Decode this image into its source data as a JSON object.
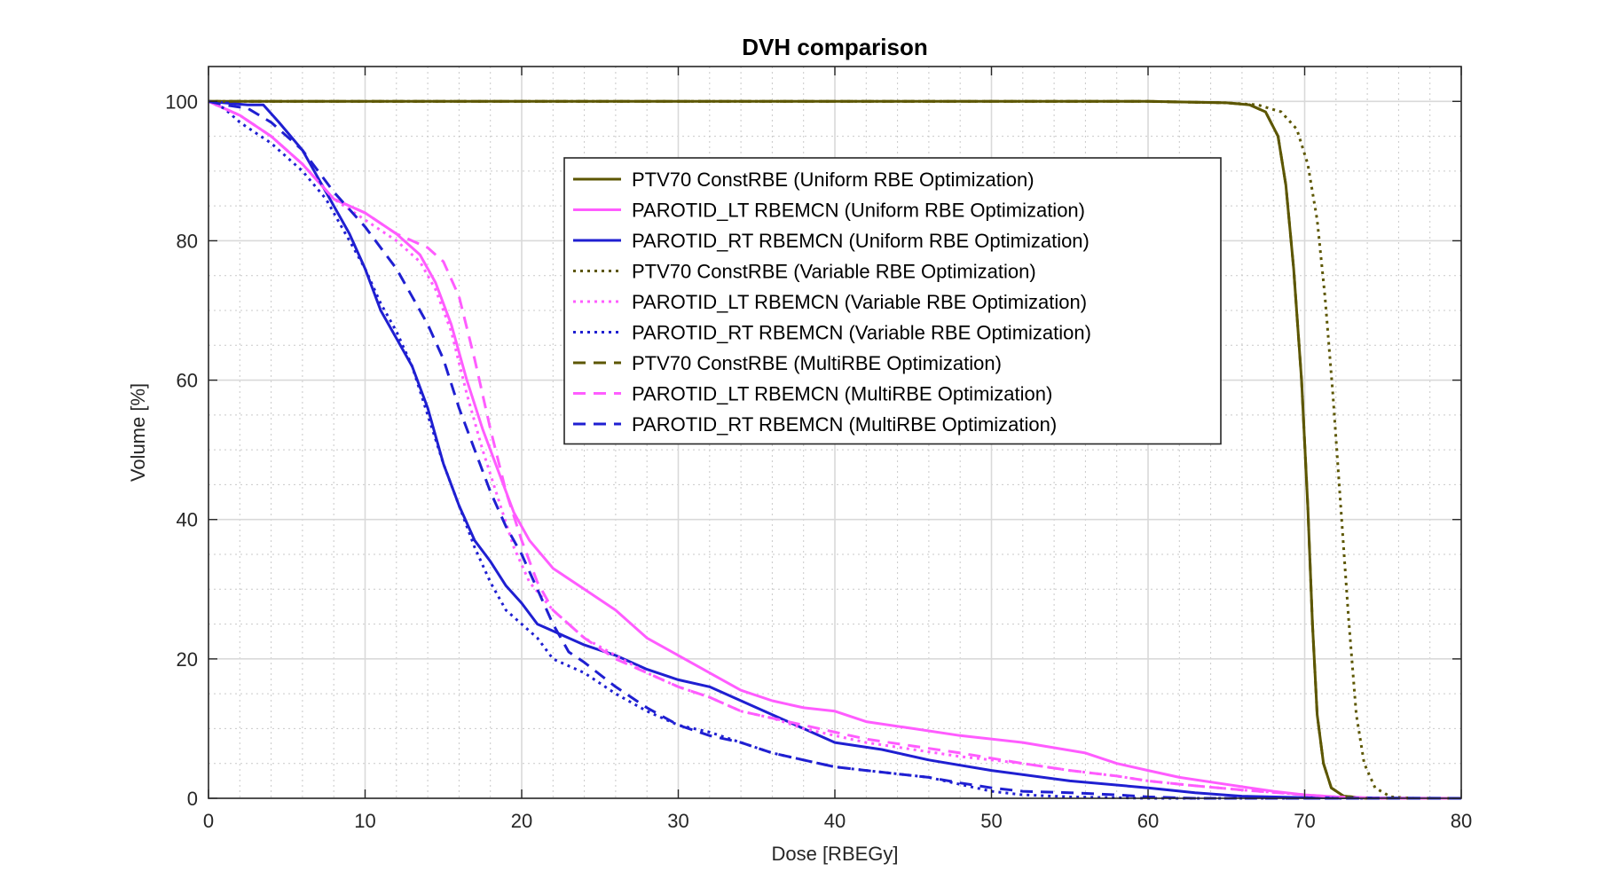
{
  "chart_data": {
    "type": "line",
    "title": "DVH comparison",
    "xlabel": "Dose [RBEGy]",
    "ylabel": "Volume [%]",
    "xlim": [
      0,
      80
    ],
    "ylim": [
      0,
      105
    ],
    "xticks": [
      0,
      10,
      20,
      30,
      40,
      50,
      60,
      70,
      80
    ],
    "yticks": [
      0,
      20,
      40,
      60,
      80,
      100
    ],
    "grid": true,
    "minor_grid": true,
    "legend_position": "top-center",
    "series": [
      {
        "name": "PTV70 ConstRBE (Uniform RBE Optimization)",
        "color": "#5c5600",
        "dash": "solid",
        "width": 3,
        "points": [
          [
            0,
            100
          ],
          [
            50,
            100
          ],
          [
            60,
            100
          ],
          [
            65,
            99.8
          ],
          [
            66.5,
            99.5
          ],
          [
            67.5,
            98.5
          ],
          [
            68.3,
            95
          ],
          [
            68.8,
            88
          ],
          [
            69.3,
            76
          ],
          [
            69.8,
            60
          ],
          [
            70.2,
            42
          ],
          [
            70.5,
            25
          ],
          [
            70.8,
            12
          ],
          [
            71.2,
            5
          ],
          [
            71.7,
            1.5
          ],
          [
            72.5,
            0.3
          ],
          [
            74,
            0
          ],
          [
            80,
            0
          ]
        ]
      },
      {
        "name": "PAROTID_LT RBEMCN (Uniform RBE Optimization)",
        "color": "#ff5cff",
        "dash": "solid",
        "width": 3,
        "points": [
          [
            0,
            100
          ],
          [
            2,
            98
          ],
          [
            4,
            95
          ],
          [
            6,
            91
          ],
          [
            8,
            86
          ],
          [
            10,
            84
          ],
          [
            12,
            81
          ],
          [
            13.5,
            78
          ],
          [
            14.5,
            74
          ],
          [
            15.5,
            68
          ],
          [
            16.5,
            60
          ],
          [
            17.5,
            53
          ],
          [
            18.5,
            47
          ],
          [
            19.5,
            41
          ],
          [
            20.5,
            37
          ],
          [
            22,
            33
          ],
          [
            24,
            30
          ],
          [
            26,
            27
          ],
          [
            28,
            23
          ],
          [
            30,
            20.5
          ],
          [
            32,
            18
          ],
          [
            34,
            15.5
          ],
          [
            36,
            14
          ],
          [
            38,
            13
          ],
          [
            40,
            12.5
          ],
          [
            42,
            11
          ],
          [
            45,
            10
          ],
          [
            48,
            9
          ],
          [
            52,
            8
          ],
          [
            56,
            6.5
          ],
          [
            58,
            5
          ],
          [
            60,
            4
          ],
          [
            62,
            3
          ],
          [
            65,
            2
          ],
          [
            68,
            1
          ],
          [
            70,
            0.5
          ],
          [
            72,
            0.2
          ],
          [
            75,
            0
          ],
          [
            80,
            0
          ]
        ]
      },
      {
        "name": "PAROTID_RT RBEMCN (Uniform RBE Optimization)",
        "color": "#1f1fd1",
        "dash": "solid",
        "width": 3,
        "points": [
          [
            0,
            100
          ],
          [
            2.5,
            99.5
          ],
          [
            3.5,
            99.5
          ],
          [
            4.5,
            97
          ],
          [
            6,
            93
          ],
          [
            7.5,
            87
          ],
          [
            9,
            81
          ],
          [
            10,
            76
          ],
          [
            11,
            70
          ],
          [
            12,
            66
          ],
          [
            13,
            62
          ],
          [
            14,
            56
          ],
          [
            15,
            48
          ],
          [
            16,
            42
          ],
          [
            17,
            37
          ],
          [
            18,
            34
          ],
          [
            19,
            30.5
          ],
          [
            20,
            28
          ],
          [
            21,
            25
          ],
          [
            22,
            24
          ],
          [
            24,
            22
          ],
          [
            26,
            20.5
          ],
          [
            28,
            18.5
          ],
          [
            30,
            17
          ],
          [
            32,
            16
          ],
          [
            34,
            14
          ],
          [
            36,
            12
          ],
          [
            38,
            10
          ],
          [
            40,
            8
          ],
          [
            43,
            7
          ],
          [
            46,
            5.5
          ],
          [
            50,
            4
          ],
          [
            55,
            2.5
          ],
          [
            60,
            1.5
          ],
          [
            63,
            0.8
          ],
          [
            66,
            0.3
          ],
          [
            70,
            0.1
          ],
          [
            80,
            0
          ]
        ]
      },
      {
        "name": "PTV70 ConstRBE (Variable RBE Optimization)",
        "color": "#5c5600",
        "dash": "dot",
        "width": 3,
        "points": [
          [
            0,
            100
          ],
          [
            50,
            100
          ],
          [
            60,
            100
          ],
          [
            65,
            99.8
          ],
          [
            67,
            99.5
          ],
          [
            68.5,
            98.5
          ],
          [
            69.5,
            96
          ],
          [
            70.2,
            91
          ],
          [
            70.8,
            83
          ],
          [
            71.3,
            72
          ],
          [
            71.8,
            58
          ],
          [
            72.3,
            42
          ],
          [
            72.8,
            26
          ],
          [
            73.3,
            12
          ],
          [
            73.8,
            5
          ],
          [
            74.5,
            1.5
          ],
          [
            75.5,
            0.2
          ],
          [
            77,
            0
          ],
          [
            80,
            0
          ]
        ]
      },
      {
        "name": "PAROTID_LT RBEMCN (Variable RBE Optimization)",
        "color": "#ff5cff",
        "dash": "dot",
        "width": 3,
        "points": [
          [
            0,
            100
          ],
          [
            2,
            98
          ],
          [
            4,
            95
          ],
          [
            6,
            91
          ],
          [
            8,
            86
          ],
          [
            10,
            83
          ],
          [
            12,
            80
          ],
          [
            13.5,
            77
          ],
          [
            14.5,
            73
          ],
          [
            15.5,
            67
          ],
          [
            16.5,
            58
          ],
          [
            17.5,
            50
          ],
          [
            18.5,
            43
          ],
          [
            19.5,
            36
          ],
          [
            20.5,
            31
          ],
          [
            22,
            27
          ],
          [
            24,
            23
          ],
          [
            26,
            20.5
          ],
          [
            28,
            18
          ],
          [
            30,
            16
          ],
          [
            32,
            14.5
          ],
          [
            34,
            12.5
          ],
          [
            36,
            11.5
          ],
          [
            38,
            10
          ],
          [
            40,
            9
          ],
          [
            42,
            8
          ],
          [
            45,
            7
          ],
          [
            48,
            6
          ],
          [
            52,
            5
          ],
          [
            55,
            4
          ],
          [
            58,
            3.2
          ],
          [
            60,
            2.5
          ],
          [
            63,
            1.8
          ],
          [
            66,
            1.2
          ],
          [
            70,
            0.5
          ],
          [
            72,
            0.2
          ],
          [
            75,
            0
          ],
          [
            80,
            0
          ]
        ]
      },
      {
        "name": "PAROTID_RT RBEMCN (Variable RBE Optimization)",
        "color": "#1f1fd1",
        "dash": "dot",
        "width": 3,
        "points": [
          [
            0,
            100
          ],
          [
            1,
            99
          ],
          [
            2,
            97
          ],
          [
            4,
            94
          ],
          [
            6,
            90
          ],
          [
            7.5,
            86
          ],
          [
            8.5,
            82
          ],
          [
            9,
            80
          ],
          [
            10,
            76
          ],
          [
            11,
            71
          ],
          [
            12,
            67
          ],
          [
            13,
            62
          ],
          [
            14,
            55
          ],
          [
            15,
            48
          ],
          [
            16,
            42
          ],
          [
            17,
            36
          ],
          [
            18,
            31
          ],
          [
            19,
            27
          ],
          [
            20,
            25
          ],
          [
            21,
            23
          ],
          [
            22,
            20
          ],
          [
            24,
            18
          ],
          [
            26,
            15
          ],
          [
            28,
            12.5
          ],
          [
            30,
            10.5
          ],
          [
            32,
            9.5
          ],
          [
            34,
            8
          ],
          [
            36,
            6.5
          ],
          [
            38,
            5.5
          ],
          [
            40,
            4.5
          ],
          [
            42,
            4
          ],
          [
            44,
            3.5
          ],
          [
            46,
            3
          ],
          [
            48,
            2
          ],
          [
            50,
            1
          ],
          [
            52,
            0.5
          ],
          [
            55,
            0.2
          ],
          [
            60,
            0
          ],
          [
            80,
            0
          ]
        ]
      },
      {
        "name": "PTV70 ConstRBE (MultiRBE Optimization)",
        "color": "#5c5600",
        "dash": "dash",
        "width": 3,
        "points": [
          [
            0,
            100
          ],
          [
            50,
            100
          ],
          [
            60,
            100
          ],
          [
            65,
            99.8
          ],
          [
            66.5,
            99.5
          ],
          [
            67.5,
            98.5
          ],
          [
            68.3,
            95
          ],
          [
            68.8,
            88
          ],
          [
            69.3,
            76
          ],
          [
            69.8,
            60
          ],
          [
            70.2,
            42
          ],
          [
            70.5,
            25
          ],
          [
            70.8,
            12
          ],
          [
            71.2,
            5
          ],
          [
            71.7,
            1.5
          ],
          [
            72.5,
            0.3
          ],
          [
            74,
            0
          ],
          [
            80,
            0
          ]
        ]
      },
      {
        "name": "PAROTID_LT RBEMCN (MultiRBE Optimization)",
        "color": "#ff5cff",
        "dash": "dash",
        "width": 3,
        "points": [
          [
            0,
            100
          ],
          [
            2,
            98
          ],
          [
            4,
            95
          ],
          [
            6,
            91
          ],
          [
            8,
            86
          ],
          [
            10,
            84
          ],
          [
            12,
            81
          ],
          [
            14,
            79
          ],
          [
            15,
            77
          ],
          [
            16,
            72
          ],
          [
            17,
            63
          ],
          [
            18,
            53
          ],
          [
            19,
            44
          ],
          [
            20,
            37
          ],
          [
            21,
            31
          ],
          [
            22,
            27
          ],
          [
            24,
            23
          ],
          [
            26,
            20
          ],
          [
            28,
            18
          ],
          [
            30,
            16
          ],
          [
            32,
            14.5
          ],
          [
            34,
            12.5
          ],
          [
            36,
            11.5
          ],
          [
            38,
            10.5
          ],
          [
            40,
            9.5
          ],
          [
            42,
            8.5
          ],
          [
            45,
            7.5
          ],
          [
            48,
            6.5
          ],
          [
            52,
            5
          ],
          [
            55,
            4
          ],
          [
            58,
            3.2
          ],
          [
            60,
            2.5
          ],
          [
            63,
            1.8
          ],
          [
            66,
            1.2
          ],
          [
            70,
            0.5
          ],
          [
            72,
            0.2
          ],
          [
            75,
            0
          ],
          [
            80,
            0
          ]
        ]
      },
      {
        "name": "PAROTID_RT RBEMCN (MultiRBE Optimization)",
        "color": "#1f1fd1",
        "dash": "dash",
        "width": 3,
        "points": [
          [
            0,
            100
          ],
          [
            1,
            99.5
          ],
          [
            2.5,
            99
          ],
          [
            4,
            97
          ],
          [
            6,
            93
          ],
          [
            8,
            87
          ],
          [
            10,
            82
          ],
          [
            11,
            79
          ],
          [
            12,
            76
          ],
          [
            13,
            72
          ],
          [
            14,
            68
          ],
          [
            15,
            63
          ],
          [
            16,
            56
          ],
          [
            17,
            50
          ],
          [
            18,
            44
          ],
          [
            19,
            39
          ],
          [
            20,
            35
          ],
          [
            21,
            30
          ],
          [
            22,
            25
          ],
          [
            23,
            21
          ],
          [
            24,
            19.5
          ],
          [
            26,
            16
          ],
          [
            28,
            13
          ],
          [
            30,
            10.5
          ],
          [
            32,
            9
          ],
          [
            34,
            8
          ],
          [
            36,
            6.5
          ],
          [
            38,
            5.5
          ],
          [
            40,
            4.5
          ],
          [
            42,
            4
          ],
          [
            44,
            3.5
          ],
          [
            46,
            3
          ],
          [
            48,
            2.2
          ],
          [
            50,
            1.5
          ],
          [
            52,
            1
          ],
          [
            55,
            0.8
          ],
          [
            58,
            0.5
          ],
          [
            60,
            0.2
          ],
          [
            63,
            0
          ],
          [
            80,
            0
          ]
        ]
      }
    ]
  }
}
